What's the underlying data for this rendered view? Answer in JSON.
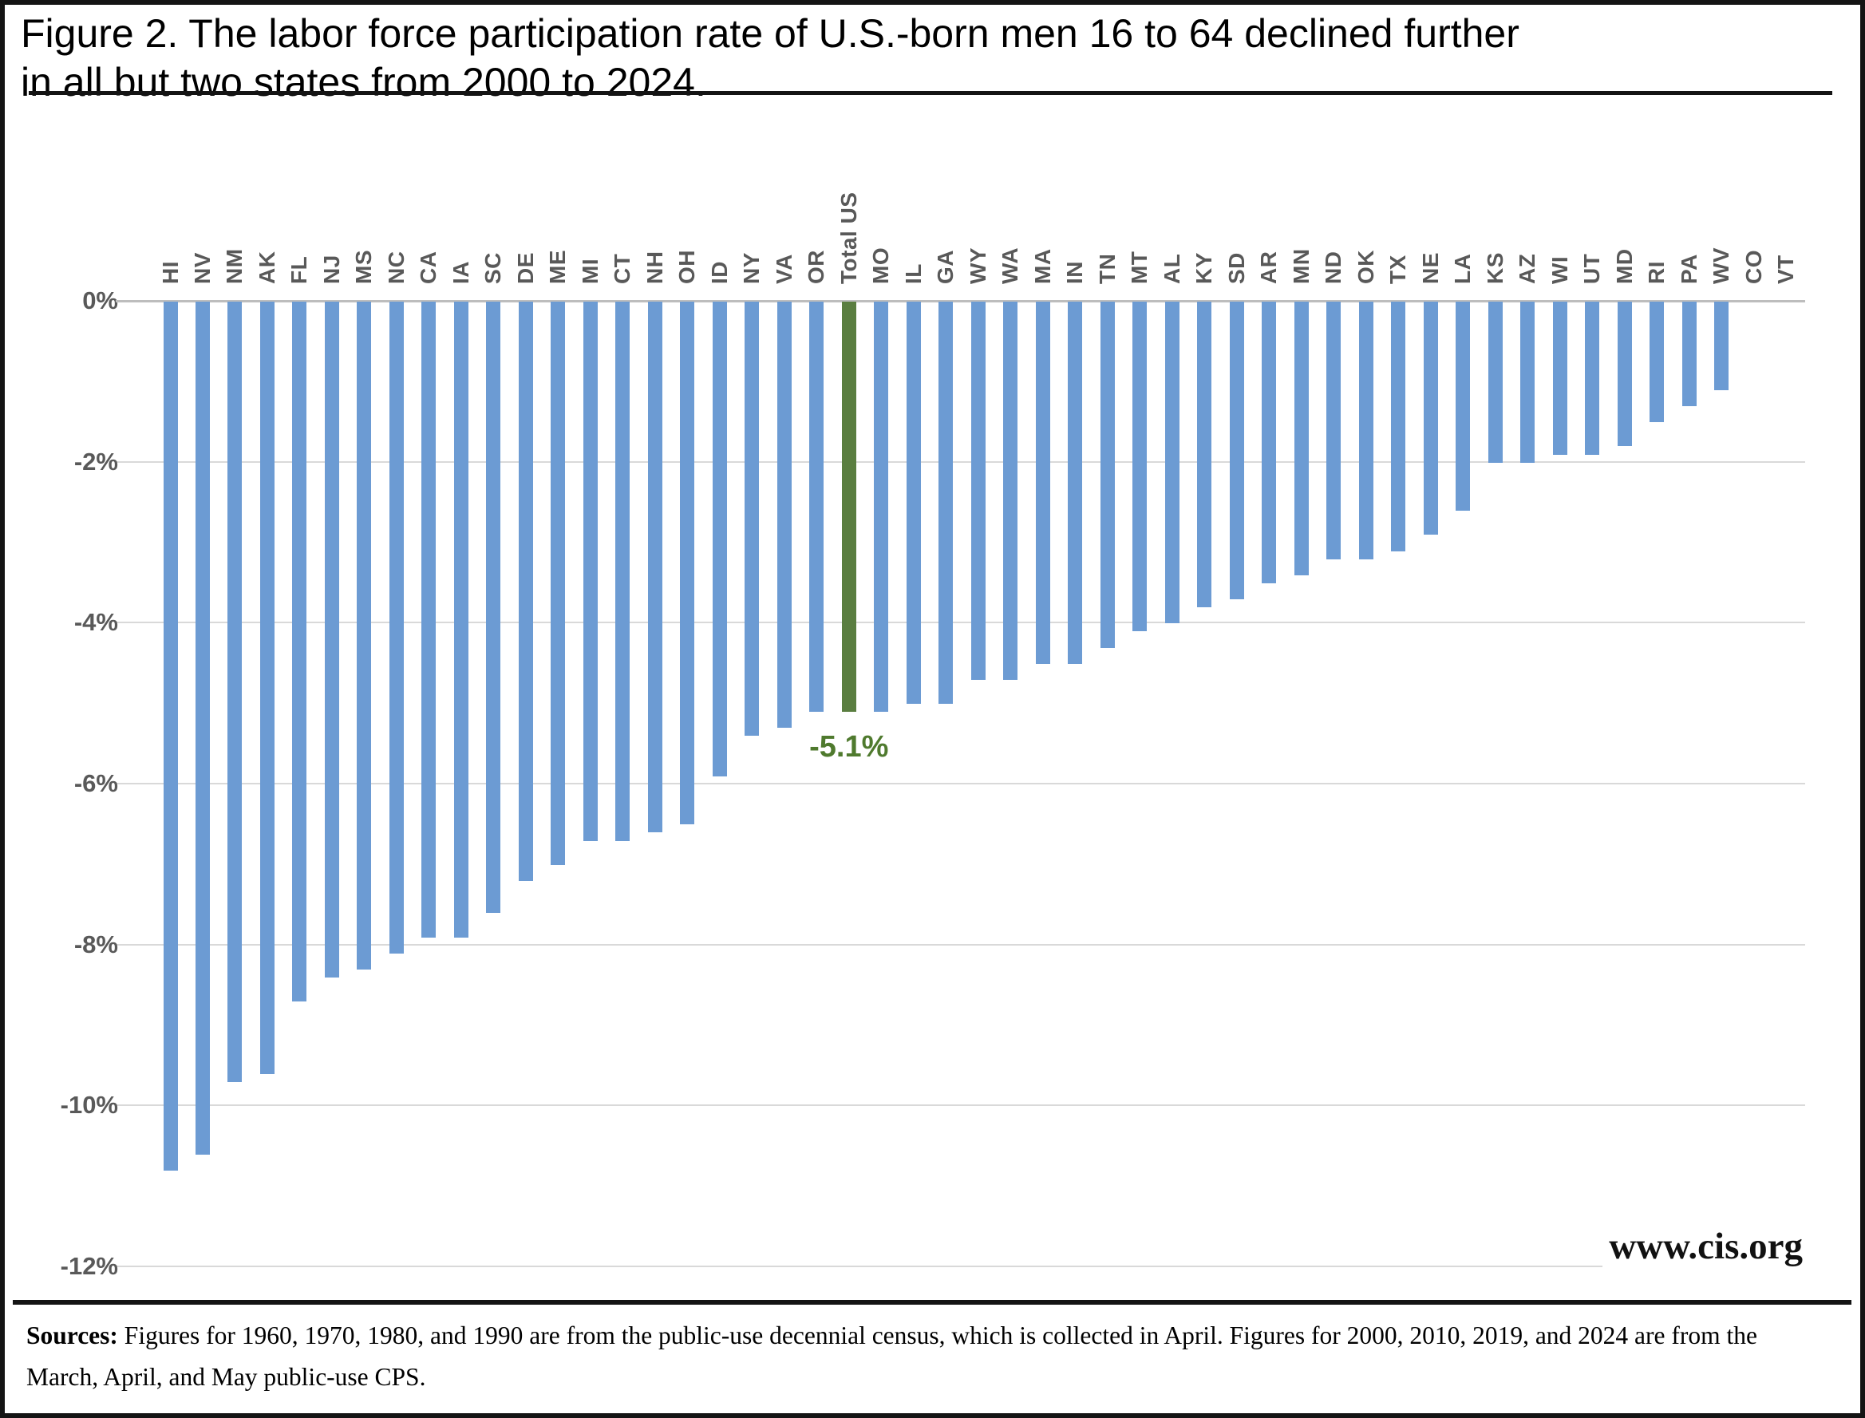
{
  "figure": {
    "title_line1": "Figure 2. The labor force participation rate of U.S.-born men 16 to 64 declined further",
    "title_line2": "in all but two states from 2000 to 2024.",
    "watermark": "www.cis.org",
    "sources_label": "Sources:",
    "sources_line1": " Figures for 1960, 1970, 1980, and 1990 are from the public-use decennial census, which is collected in April. Figures for 2000, 2010, 2019, and 2024 are from the",
    "sources_line2": "March, April, and May public-use CPS."
  },
  "chart_data": {
    "type": "bar",
    "title": "Figure 2. The labor force participation rate of U.S.-born men 16 to 64 declined further in all but two states from 2000 to 2024.",
    "categories": [
      "HI",
      "NV",
      "NM",
      "AK",
      "FL",
      "NJ",
      "MS",
      "NC",
      "CA",
      "IA",
      "SC",
      "DE",
      "ME",
      "MI",
      "CT",
      "NH",
      "OH",
      "ID",
      "NY",
      "VA",
      "OR",
      "Total US",
      "MO",
      "IL",
      "GA",
      "WY",
      "WA",
      "MA",
      "IN",
      "TN",
      "MT",
      "AL",
      "KY",
      "SD",
      "AR",
      "MN",
      "ND",
      "OK",
      "TX",
      "NE",
      "LA",
      "KS",
      "AZ",
      "WI",
      "UT",
      "MD",
      "RI",
      "PA",
      "WV",
      "CO",
      "VT"
    ],
    "values": [
      -10.8,
      -10.6,
      -9.7,
      -9.6,
      -8.7,
      -8.4,
      -8.3,
      -8.1,
      -7.9,
      -7.9,
      -7.6,
      -7.2,
      -7.0,
      -6.7,
      -6.7,
      -6.6,
      -6.5,
      -5.9,
      -5.4,
      -5.3,
      -5.1,
      -5.1,
      -5.1,
      -5.0,
      -5.0,
      -4.7,
      -4.7,
      -4.5,
      -4.5,
      -4.3,
      -4.1,
      -4.0,
      -3.8,
      -3.7,
      -3.5,
      -3.4,
      -3.2,
      -3.2,
      -3.1,
      -2.9,
      -2.6,
      -2.0,
      -2.0,
      -1.9,
      -1.9,
      -1.8,
      -1.5,
      -1.3,
      -1.1,
      0,
      0
    ],
    "highlight": {
      "category": "Total US",
      "label": "-5.1%"
    },
    "y_ticks": [
      "0%",
      "-2%",
      "-4%",
      "-6%",
      "-8%",
      "-10%",
      "-12%"
    ],
    "ylim": [
      -12,
      0
    ],
    "grid": "horizontal",
    "legend": "none",
    "colors": {
      "bar": "#6C9BD3",
      "highlight_bar": "#5A7E40",
      "highlight_label": "#4F7A2E",
      "axis_text": "#595959",
      "gridline": "#D9D9D9",
      "zero_line": "#BDBDBD"
    }
  }
}
